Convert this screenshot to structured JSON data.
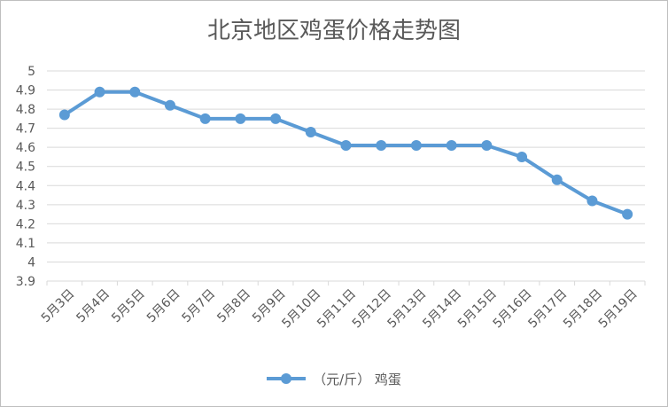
{
  "chart_data": {
    "type": "line",
    "title": "北京地区鸡蛋价格走势图",
    "xlabel": "",
    "ylabel": "",
    "categories": [
      "5月3日",
      "5月4日",
      "5月5日",
      "5月6日",
      "5月7日",
      "5月8日",
      "5月9日",
      "5月10日",
      "5月11日",
      "5月12日",
      "5月13日",
      "5月14日",
      "5月15日",
      "5月16日",
      "5月17日",
      "5月18日",
      "5月19日"
    ],
    "series": [
      {
        "name": "（元/斤） 鸡蛋",
        "values": [
          4.77,
          4.89,
          4.89,
          4.82,
          4.75,
          4.75,
          4.75,
          4.68,
          4.61,
          4.61,
          4.61,
          4.61,
          4.61,
          4.55,
          4.43,
          4.32,
          4.25
        ]
      }
    ],
    "ylim": [
      3.9,
      5.0
    ],
    "yticks": [
      "3.9",
      "4",
      "4.1",
      "4.2",
      "4.3",
      "4.4",
      "4.5",
      "4.6",
      "4.7",
      "4.8",
      "4.9",
      "5"
    ],
    "grid": true,
    "legend_position": "bottom",
    "colors": {
      "series": "#5b9bd5",
      "grid": "#d9d9d9",
      "text": "#595959"
    }
  }
}
